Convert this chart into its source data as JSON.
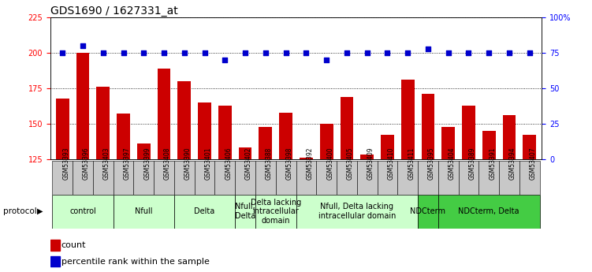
{
  "title": "GDS1690 / 1627331_at",
  "samples": [
    "GSM53393",
    "GSM53396",
    "GSM53403",
    "GSM53397",
    "GSM53399",
    "GSM53408",
    "GSM53390",
    "GSM53401",
    "GSM53406",
    "GSM53402",
    "GSM53388",
    "GSM53398",
    "GSM53392",
    "GSM53400",
    "GSM53405",
    "GSM53409",
    "GSM53410",
    "GSM53411",
    "GSM53395",
    "GSM53404",
    "GSM53389",
    "GSM53391",
    "GSM53394",
    "GSM53407"
  ],
  "counts": [
    168,
    200,
    176,
    157,
    136,
    189,
    180,
    165,
    163,
    133,
    148,
    158,
    126,
    150,
    169,
    128,
    142,
    181,
    171,
    148,
    163,
    145,
    156,
    142
  ],
  "percentiles": [
    75,
    80,
    75,
    75,
    75,
    75,
    75,
    75,
    70,
    75,
    75,
    75,
    75,
    70,
    75,
    75,
    75,
    75,
    78,
    75,
    75,
    75,
    75,
    75
  ],
  "bar_color": "#cc0000",
  "dot_color": "#0000cc",
  "ylim_left": [
    125,
    225
  ],
  "ylim_right": [
    0,
    100
  ],
  "yticks_left": [
    125,
    150,
    175,
    200,
    225
  ],
  "yticks_right": [
    0,
    25,
    50,
    75,
    100
  ],
  "ytick_labels_right": [
    "0",
    "25",
    "50",
    "75",
    "100%"
  ],
  "groups": [
    {
      "label": "control",
      "start": 0,
      "end": 3,
      "color": "#ccffcc"
    },
    {
      "label": "Nfull",
      "start": 3,
      "end": 6,
      "color": "#ccffcc"
    },
    {
      "label": "Delta",
      "start": 6,
      "end": 9,
      "color": "#ccffcc"
    },
    {
      "label": "Nfull,\nDelta",
      "start": 9,
      "end": 10,
      "color": "#ccffcc"
    },
    {
      "label": "Delta lacking\nintracellular\ndomain",
      "start": 10,
      "end": 12,
      "color": "#ccffcc"
    },
    {
      "label": "Nfull, Delta lacking\nintracellular domain",
      "start": 12,
      "end": 18,
      "color": "#ccffcc"
    },
    {
      "label": "NDCterm",
      "start": 18,
      "end": 19,
      "color": "#44cc44"
    },
    {
      "label": "NDCterm, Delta",
      "start": 19,
      "end": 24,
      "color": "#44cc44"
    }
  ],
  "protocol_label": "protocol",
  "legend_count_label": "count",
  "legend_pct_label": "percentile rank within the sample",
  "sample_box_color": "#c8c8c8",
  "title_fontsize": 10,
  "tick_fontsize": 7,
  "group_fontsize": 7,
  "legend_fontsize": 8
}
